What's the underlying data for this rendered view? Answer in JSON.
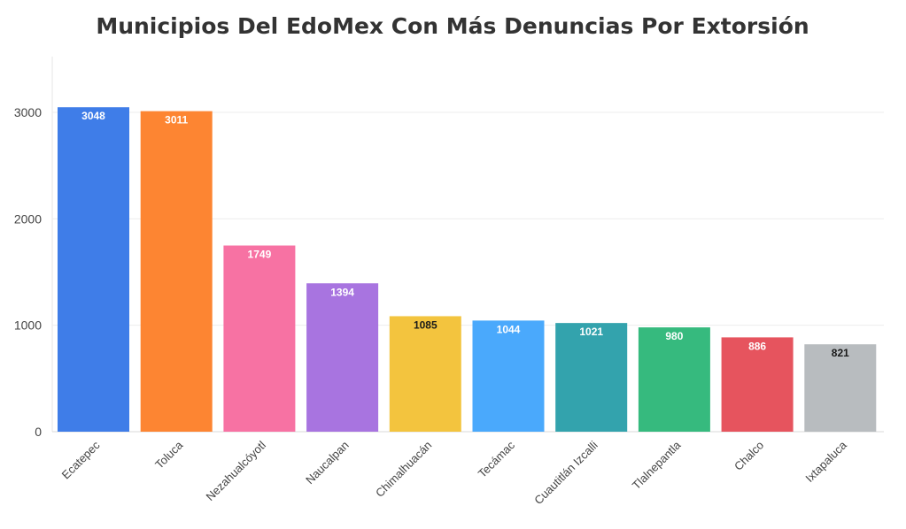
{
  "chart_data": {
    "type": "bar",
    "title": "Municipios Del EdoMex Con Más Denuncias Por Extorsión",
    "xlabel": "",
    "ylabel": "",
    "ylim": [
      0,
      3500
    ],
    "yticks": [
      0,
      1000,
      2000,
      3000
    ],
    "grid": true,
    "legend": "none",
    "categories": [
      "Ecatepec",
      "Toluca",
      "Nezahualcóyotl",
      "Naucalpan",
      "Chimalhuacán",
      "Tecámac",
      "Cuautitlán Izcalli",
      "Tlalnepantla",
      "Chalco",
      "Ixtapaluca"
    ],
    "values": [
      3048,
      3011,
      1749,
      1394,
      1085,
      1044,
      1021,
      980,
      886,
      821
    ],
    "value_labels": [
      "3048",
      "3011",
      "1749",
      "1394",
      "1085",
      "1044",
      "1021",
      "980",
      "886",
      "821"
    ],
    "colors": [
      "#3f7de8",
      "#fd8532",
      "#f772a3",
      "#a874e0",
      "#f3c43e",
      "#4aa9fc",
      "#33a3ad",
      "#36ba7e",
      "#e6545e",
      "#b8bcbf"
    ],
    "label_colors": [
      "#ffffff",
      "#ffffff",
      "#ffffff",
      "#ffffff",
      "#1a1a1a",
      "#ffffff",
      "#ffffff",
      "#ffffff",
      "#ffffff",
      "#1a1a1a"
    ]
  }
}
